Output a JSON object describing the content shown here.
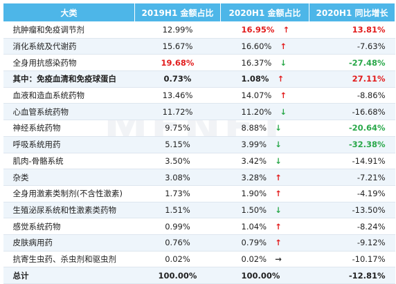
{
  "headers": [
    "大类",
    "2019H1 金额占比",
    "2020H1 金额占比",
    "2020H1 同比增长"
  ],
  "rows": [
    {
      "name": "抗肿瘤和免疫调节剂",
      "v2019": "12.99%",
      "v2020": "16.95%",
      "trend": "up",
      "growth": "13.81%",
      "style2019": "",
      "style2020": "red",
      "styleGrowth": "red",
      "bold": false
    },
    {
      "name": "消化系统及代谢药",
      "v2019": "15.67%",
      "v2020": "16.60%",
      "trend": "up",
      "growth": "-7.63%",
      "style2019": "",
      "style2020": "",
      "styleGrowth": "",
      "bold": false
    },
    {
      "name": "全身用抗感染药物",
      "v2019": "19.68%",
      "v2020": "16.37%",
      "trend": "down",
      "growth": "-27.48%",
      "style2019": "red",
      "style2020": "",
      "styleGrowth": "green",
      "bold": false
    },
    {
      "name": "其中：免疫血清和免疫球蛋白",
      "v2019": "0.73%",
      "v2020": "1.08%",
      "trend": "up",
      "growth": "27.11%",
      "style2019": "bold",
      "style2020": "bold",
      "styleGrowth": "red",
      "bold": true
    },
    {
      "name": "血液和造血系统药物",
      "v2019": "13.46%",
      "v2020": "14.07%",
      "trend": "up",
      "growth": "-8.86%",
      "style2019": "",
      "style2020": "",
      "styleGrowth": "",
      "bold": false
    },
    {
      "name": "心血管系统药物",
      "v2019": "11.72%",
      "v2020": "11.20%",
      "trend": "down",
      "growth": "-16.68%",
      "style2019": "",
      "style2020": "",
      "styleGrowth": "",
      "bold": false
    },
    {
      "name": "神经系统药物",
      "v2019": "9.75%",
      "v2020": "8.88%",
      "trend": "down",
      "growth": "-20.64%",
      "style2019": "",
      "style2020": "",
      "styleGrowth": "green",
      "bold": false
    },
    {
      "name": "呼吸系统用药",
      "v2019": "5.15%",
      "v2020": "3.99%",
      "trend": "down",
      "growth": "-32.38%",
      "style2019": "",
      "style2020": "",
      "styleGrowth": "green",
      "bold": false
    },
    {
      "name": "肌肉-骨骼系统",
      "v2019": "3.50%",
      "v2020": "3.42%",
      "trend": "down",
      "growth": "-14.91%",
      "style2019": "",
      "style2020": "",
      "styleGrowth": "",
      "bold": false
    },
    {
      "name": "杂类",
      "v2019": "3.08%",
      "v2020": "3.28%",
      "trend": "up",
      "growth": "-7.21%",
      "style2019": "",
      "style2020": "",
      "styleGrowth": "",
      "bold": false
    },
    {
      "name": "全身用激素类制剂(不含性激素)",
      "v2019": "1.73%",
      "v2020": "1.90%",
      "trend": "up",
      "growth": "-4.19%",
      "style2019": "",
      "style2020": "",
      "styleGrowth": "",
      "bold": false
    },
    {
      "name": "生殖泌尿系统和性激素类药物",
      "v2019": "1.51%",
      "v2020": "1.50%",
      "trend": "down",
      "growth": "-13.50%",
      "style2019": "",
      "style2020": "",
      "styleGrowth": "",
      "bold": false
    },
    {
      "name": "感觉系统药物",
      "v2019": "0.99%",
      "v2020": "1.04%",
      "trend": "up",
      "growth": "-8.24%",
      "style2019": "",
      "style2020": "",
      "styleGrowth": "",
      "bold": false
    },
    {
      "name": "皮肤病用药",
      "v2019": "0.76%",
      "v2020": "0.79%",
      "trend": "up",
      "growth": "-9.12%",
      "style2019": "",
      "style2020": "",
      "styleGrowth": "",
      "bold": false
    },
    {
      "name": "抗寄生虫药、杀虫剂和驱虫剂",
      "v2019": "0.02%",
      "v2020": "0.02%",
      "trend": "flat",
      "growth": "-10.17%",
      "style2019": "",
      "style2020": "",
      "styleGrowth": "",
      "bold": false
    },
    {
      "name": "总计",
      "v2019": "100.00%",
      "v2020": "100.00%",
      "trend": "",
      "growth": "-12.81%",
      "style2019": "bold",
      "style2020": "bold",
      "styleGrowth": "bold",
      "bold": true
    }
  ],
  "arrows": {
    "up": "↑",
    "down": "↓",
    "flat": "→"
  },
  "watermark_text": "MENET",
  "colors": {
    "header_bg": "#4db6e8",
    "alt_row_bg": "#eef5fb",
    "up": "#e21d1d",
    "down": "#2aa84a"
  }
}
